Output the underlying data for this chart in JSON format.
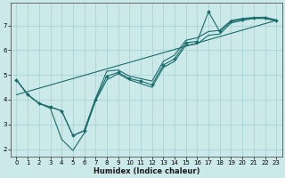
{
  "xlabel": "Humidex (Indice chaleur)",
  "background_color": "#cce9ea",
  "grid_color": "#aad4d6",
  "line_color": "#1a6b6b",
  "xlim": [
    -0.5,
    23.5
  ],
  "ylim": [
    1.7,
    7.9
  ],
  "x_ticks": [
    0,
    1,
    2,
    3,
    4,
    5,
    6,
    7,
    8,
    9,
    10,
    11,
    12,
    13,
    14,
    15,
    16,
    17,
    18,
    19,
    20,
    21,
    22,
    23
  ],
  "y_ticks": [
    2,
    3,
    4,
    5,
    6,
    7
  ],
  "trend_x": [
    0,
    23
  ],
  "trend_y": [
    4.2,
    7.2
  ],
  "line_main_x": [
    0,
    1,
    2,
    3,
    4,
    5,
    6,
    7,
    8,
    9,
    10,
    11,
    12,
    13,
    14,
    15,
    16,
    17,
    18,
    19,
    20,
    21,
    22,
    23
  ],
  "line_main_y": [
    4.8,
    4.2,
    3.85,
    3.7,
    3.55,
    2.55,
    2.75,
    4.0,
    4.95,
    5.1,
    4.85,
    4.75,
    4.6,
    5.4,
    5.65,
    6.3,
    6.35,
    7.55,
    6.75,
    7.15,
    7.25,
    7.3,
    7.3,
    7.2
  ],
  "line_upper_x": [
    0,
    1,
    2,
    3,
    4,
    5,
    6,
    7,
    8,
    9,
    10,
    11,
    12,
    13,
    14,
    15,
    16,
    17,
    18,
    19,
    20,
    21,
    22,
    23
  ],
  "line_upper_y": [
    4.8,
    4.2,
    3.85,
    3.7,
    3.55,
    2.55,
    2.75,
    4.05,
    5.15,
    5.2,
    4.95,
    4.85,
    4.75,
    5.55,
    5.8,
    6.4,
    6.5,
    6.75,
    6.8,
    7.2,
    7.28,
    7.32,
    7.33,
    7.22
  ],
  "line_lower_x": [
    0,
    1,
    2,
    3,
    4,
    5,
    6,
    7,
    8,
    9,
    10,
    11,
    12,
    13,
    14,
    15,
    16,
    17,
    18,
    19,
    20,
    21,
    22,
    23
  ],
  "line_lower_y": [
    4.8,
    4.2,
    3.85,
    3.65,
    2.4,
    1.95,
    2.65,
    3.95,
    4.8,
    5.05,
    4.8,
    4.65,
    4.5,
    5.3,
    5.55,
    6.2,
    6.25,
    6.6,
    6.65,
    7.1,
    7.2,
    7.28,
    7.28,
    7.18
  ]
}
